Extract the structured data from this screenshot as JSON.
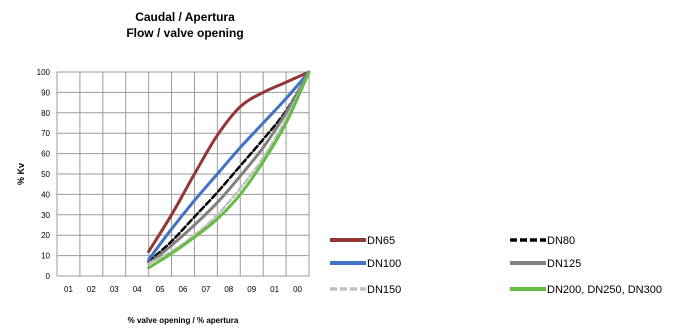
{
  "chart_data": {
    "type": "line",
    "title": "Caudal / Apertura",
    "subtitle": "Flow / valve opening",
    "xlabel": "% valve opening / % apertura",
    "ylabel": "% Kv",
    "x_tick_labels": [
      "01",
      "02",
      "03",
      "04",
      "05",
      "06",
      "07",
      "08",
      "09",
      "01",
      "00"
    ],
    "y_ticks": [
      0,
      10,
      20,
      30,
      40,
      50,
      60,
      70,
      80,
      90,
      100
    ],
    "ylim": [
      0,
      100
    ],
    "grid": true,
    "legend_position": "bottom-right",
    "series": [
      {
        "name": "DN65",
        "color": "#943634",
        "dash": "solid",
        "x": [
          4,
          5,
          6,
          7,
          8,
          9,
          10,
          11
        ],
        "y": [
          12,
          30,
          50,
          69,
          83,
          90,
          95,
          100
        ]
      },
      {
        "name": "DN80",
        "color": "#000000",
        "dash": "dashed",
        "x": [
          4,
          5,
          6,
          7,
          8,
          9,
          10,
          11
        ],
        "y": [
          7,
          17,
          29,
          41,
          54,
          67,
          81,
          100
        ]
      },
      {
        "name": "DN100",
        "color": "#4472C4",
        "dash": "solid",
        "x": [
          4,
          5,
          6,
          7,
          8,
          9,
          10,
          11
        ],
        "y": [
          8,
          23,
          37,
          50,
          63,
          75,
          87,
          100
        ]
      },
      {
        "name": "DN125",
        "color": "#808080",
        "dash": "solid",
        "x": [
          4,
          5,
          6,
          7,
          8,
          9,
          10,
          11
        ],
        "y": [
          6,
          15,
          25,
          36,
          49,
          63,
          80,
          100
        ]
      },
      {
        "name": "DN150",
        "color": "#BFBFBF",
        "dash": "dashed",
        "x": [
          4,
          5,
          6,
          7,
          8,
          9,
          10,
          11
        ],
        "y": [
          6,
          12,
          20,
          30,
          43,
          58,
          77,
          100
        ]
      },
      {
        "name": "DN200, DN250, DN300",
        "color": "#66BB44",
        "dash": "solid",
        "x": [
          4,
          5,
          6,
          7,
          8,
          9,
          10,
          11
        ],
        "y": [
          4,
          11,
          19,
          28,
          40,
          56,
          75,
          100
        ]
      }
    ]
  }
}
